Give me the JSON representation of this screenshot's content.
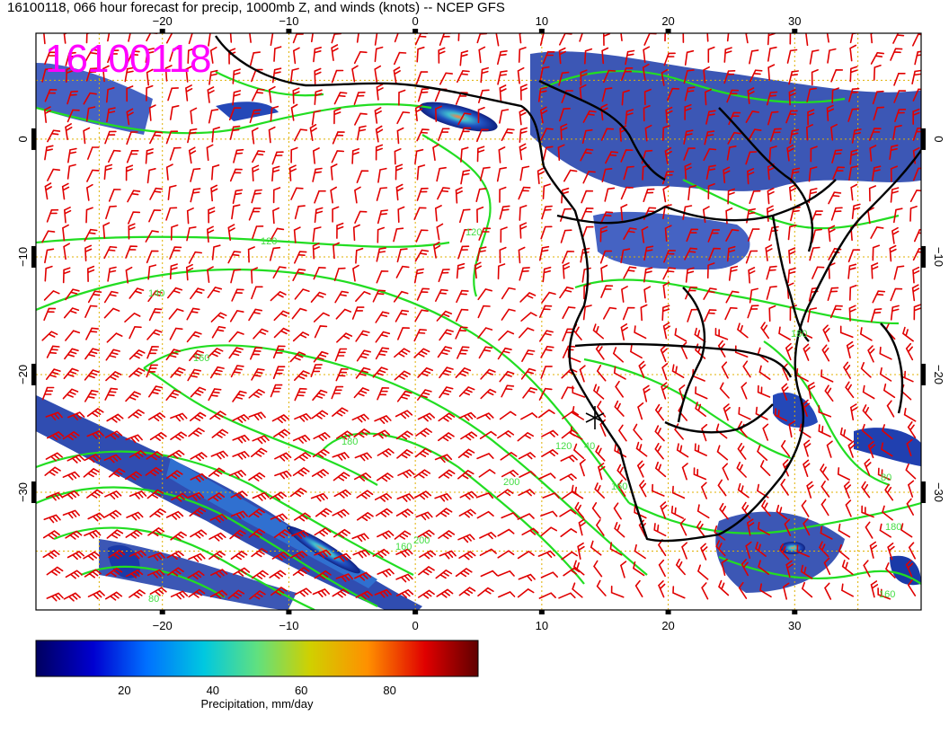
{
  "title": "16100118, 066 hour forecast for precip, 1000mb Z, and winds (knots) -- NCEP GFS",
  "stamp": "16100118",
  "axes": {
    "lon_ticks": [
      -20,
      -10,
      0,
      10,
      20,
      30
    ],
    "lat_ticks": [
      0,
      -10,
      -20,
      -30
    ],
    "lon_range": [
      -30,
      40
    ],
    "lat_range": [
      -40,
      9
    ]
  },
  "colorbar": {
    "label": "Precipitation, mm/day",
    "ticks": [
      20,
      40,
      60,
      80
    ],
    "range": [
      0,
      100
    ],
    "colors": [
      "#000060",
      "#0000c8",
      "#0060ff",
      "#00c0e0",
      "#40e0a0",
      "#c8d800",
      "#ffa000",
      "#e01000",
      "#700000"
    ]
  },
  "colors": {
    "precip_low": "#1030a0",
    "precip_high": "#d04000",
    "contours": "#22dd22",
    "wind_barbs": "#e00000",
    "grid": "#e0b000",
    "coast": "#000000"
  },
  "contour_labels": [
    "120",
    "140",
    "160",
    "180",
    "200",
    "120",
    "160",
    "200",
    "180",
    "160",
    "80",
    "80",
    "40",
    "160",
    "120",
    "180"
  ]
}
